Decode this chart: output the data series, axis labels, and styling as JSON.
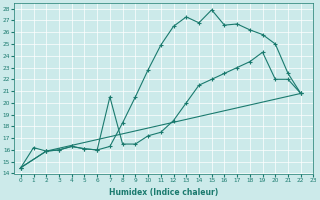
{
  "title": "",
  "xlabel": "Humidex (Indice chaleur)",
  "ylabel": "",
  "bg_color": "#cceaea",
  "line_color": "#1a7a6e",
  "xlim": [
    -0.5,
    23
  ],
  "ylim": [
    14,
    28.5
  ],
  "xticks": [
    0,
    1,
    2,
    3,
    4,
    5,
    6,
    7,
    8,
    9,
    10,
    11,
    12,
    13,
    14,
    15,
    16,
    17,
    18,
    19,
    20,
    21,
    22,
    23
  ],
  "yticks": [
    14,
    15,
    16,
    17,
    18,
    19,
    20,
    21,
    22,
    23,
    24,
    25,
    26,
    27,
    28
  ],
  "line1_x": [
    0,
    1,
    2,
    3,
    4,
    5,
    6,
    7,
    8,
    9,
    10,
    11,
    12,
    13,
    14,
    15,
    16,
    17,
    18,
    19,
    20,
    21,
    22
  ],
  "line1_y": [
    14.5,
    16.2,
    15.9,
    16.0,
    16.3,
    16.1,
    16.0,
    16.3,
    18.3,
    20.5,
    22.8,
    24.9,
    26.5,
    27.3,
    26.8,
    27.9,
    26.6,
    26.7,
    26.2,
    25.8,
    25.0,
    22.5,
    20.8
  ],
  "line2_x": [
    0,
    2,
    3,
    4,
    5,
    6,
    7,
    8,
    9,
    10,
    11,
    12,
    13,
    14,
    15,
    16,
    17,
    18,
    19,
    20,
    21,
    22
  ],
  "line2_y": [
    14.5,
    15.9,
    16.0,
    16.3,
    16.1,
    16.0,
    20.5,
    16.5,
    16.5,
    17.2,
    17.5,
    18.5,
    20.0,
    21.5,
    22.0,
    22.5,
    23.0,
    23.5,
    24.3,
    22.0,
    22.0,
    20.8
  ],
  "line3_x": [
    0,
    2,
    22
  ],
  "line3_y": [
    14.5,
    15.9,
    20.8
  ]
}
